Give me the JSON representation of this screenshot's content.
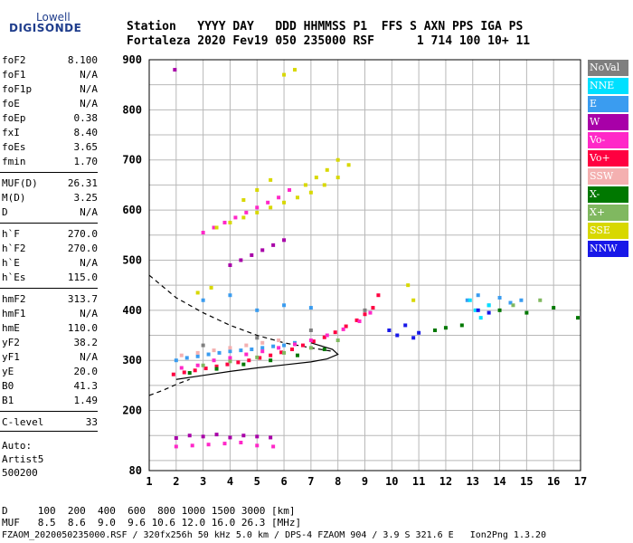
{
  "logo": {
    "line1": "Lowell",
    "line2": "DIGISONDE"
  },
  "header": {
    "line1": "Station   YYYY DAY   DDD HHMMSS P1  FFS S AXN PPS IGA PS",
    "line2": "Fortaleza 2020 Fev19 050 235000 RSF      1 714 100 10+ 11"
  },
  "params": [
    {
      "name": "foF2",
      "value": "8.100"
    },
    {
      "name": "foF1",
      "value": "N/A"
    },
    {
      "name": "foF1p",
      "value": "N/A"
    },
    {
      "name": "foE",
      "value": "N/A"
    },
    {
      "name": "foEp",
      "value": "0.38"
    },
    {
      "name": "fxI",
      "value": "8.40"
    },
    {
      "name": "foEs",
      "value": "3.65"
    },
    {
      "name": "fmin",
      "value": "1.70"
    },
    {
      "name": "MUF(D)",
      "value": "26.31"
    },
    {
      "name": "M(D)",
      "value": "3.25"
    },
    {
      "name": "D",
      "value": "N/A"
    },
    {
      "name": "h`F",
      "value": "270.0"
    },
    {
      "name": "h`F2",
      "value": "270.0"
    },
    {
      "name": "h`E",
      "value": "N/A"
    },
    {
      "name": "h`Es",
      "value": "115.0"
    },
    {
      "name": "hmF2",
      "value": "313.7"
    },
    {
      "name": "hmF1",
      "value": "N/A"
    },
    {
      "name": "hmE",
      "value": "110.0"
    },
    {
      "name": "yF2",
      "value": "38.2"
    },
    {
      "name": "yF1",
      "value": "N/A"
    },
    {
      "name": "yE",
      "value": "20.0"
    },
    {
      "name": "B0",
      "value": "41.3"
    },
    {
      "name": "B1",
      "value": "1.49"
    },
    {
      "name": "C-level",
      "value": "33"
    }
  ],
  "autoscale": {
    "line1": "Auto:",
    "line2": "Artist5",
    "line3": "500200"
  },
  "legend": [
    {
      "label": "NoVal",
      "color": "#7f7f7f"
    },
    {
      "label": "NNE",
      "color": "#00e0ff"
    },
    {
      "label": "E",
      "color": "#3a9cf0"
    },
    {
      "label": "W",
      "color": "#a800a8"
    },
    {
      "label": "Vo-",
      "color": "#ff28c8"
    },
    {
      "label": "Vo+",
      "color": "#ff0040"
    },
    {
      "label": "SSW",
      "color": "#f4b0b0"
    },
    {
      "label": "X-",
      "color": "#007800"
    },
    {
      "label": "X+",
      "color": "#80b860"
    },
    {
      "label": "SSE",
      "color": "#d8d800"
    },
    {
      "label": "NNW",
      "color": "#1818e8"
    }
  ],
  "footer": {
    "line1": "D     100  200  400  600  800 1000 1500 3000 [km]",
    "line2": "MUF   8.5  8.6  9.0  9.6 10.6 12.0 16.0 26.3 [MHz]",
    "line3": "FZAOM_2020050235000.RSF / 320fx256h 50 kHz 5.0 km / DPS-4 FZAOM 904 / 3.9 S 321.6 E   Ion2Png 1.3.20"
  },
  "chart_data": {
    "type": "scatter",
    "xlim": [
      1,
      17
    ],
    "ylim": [
      80,
      900
    ],
    "xticks": [
      "1",
      "2",
      "3",
      "4",
      "5",
      "6",
      "7",
      "8",
      "9",
      "10",
      "11",
      "12",
      "13",
      "14",
      "15",
      "16",
      "17"
    ],
    "yticks": [
      "80",
      "200",
      "300",
      "400",
      "500",
      "600",
      "700",
      "800",
      "900"
    ],
    "grid": true,
    "legend_position": "right",
    "series": [
      {
        "name": "E",
        "color": "#3a9cf0",
        "x": [
          2.0,
          2.4,
          2.8,
          3.2,
          3.6,
          4.0,
          4.4,
          4.8,
          5.2,
          5.6,
          6.0,
          6.4,
          3.0,
          4.0,
          5.0,
          6.0,
          7.0,
          12.8,
          13.2,
          13.6,
          14.0,
          14.4,
          14.8
        ],
        "y": [
          300,
          305,
          308,
          312,
          315,
          318,
          320,
          322,
          325,
          328,
          330,
          335,
          420,
          430,
          400,
          410,
          405,
          420,
          430,
          410,
          425,
          415,
          420
        ]
      },
      {
        "name": "Vo+",
        "color": "#ff0040",
        "x": [
          1.9,
          2.3,
          2.7,
          3.1,
          3.5,
          3.9,
          4.3,
          4.7,
          5.1,
          5.5,
          5.9,
          6.3,
          6.7,
          7.1,
          7.5,
          7.9,
          8.3,
          8.7,
          9.0,
          9.3,
          9.5
        ],
        "y": [
          272,
          276,
          280,
          284,
          288,
          292,
          296,
          300,
          305,
          310,
          316,
          322,
          330,
          338,
          346,
          356,
          368,
          380,
          392,
          405,
          430
        ]
      },
      {
        "name": "Vo-",
        "color": "#ff28c8",
        "x": [
          2.2,
          2.8,
          3.4,
          4.0,
          4.6,
          5.2,
          5.8,
          6.4,
          7.0,
          7.6,
          8.2,
          8.8,
          9.2,
          3.0,
          3.4,
          3.8,
          4.2,
          4.6,
          5.0,
          5.4,
          5.8,
          6.2,
          2.0,
          2.6,
          3.2,
          3.8,
          4.4,
          5.0,
          5.6
        ],
        "y": [
          285,
          290,
          300,
          305,
          312,
          318,
          325,
          332,
          340,
          350,
          362,
          378,
          395,
          555,
          565,
          575,
          585,
          595,
          605,
          615,
          625,
          640,
          128,
          130,
          132,
          134,
          136,
          130,
          128
        ]
      },
      {
        "name": "W",
        "color": "#a800a8",
        "x": [
          2.0,
          2.5,
          3.0,
          3.5,
          4.0,
          4.5,
          5.0,
          5.5,
          4.0,
          4.4,
          4.8,
          5.2,
          5.6,
          6.0,
          1.95
        ],
        "y": [
          145,
          150,
          148,
          152,
          146,
          150,
          148,
          146,
          490,
          500,
          510,
          520,
          530,
          540,
          880
        ]
      },
      {
        "name": "NNE",
        "color": "#00e0ff",
        "x": [
          12.9,
          13.1,
          13.3,
          13.6
        ],
        "y": [
          420,
          400,
          385,
          410
        ]
      },
      {
        "name": "NNW",
        "color": "#1818e8",
        "x": [
          9.9,
          10.2,
          10.5,
          10.8,
          11.0,
          13.2,
          13.6
        ],
        "y": [
          360,
          350,
          370,
          345,
          355,
          400,
          395
        ]
      },
      {
        "name": "X-",
        "color": "#007800",
        "x": [
          2.5,
          3.5,
          4.5,
          5.5,
          6.5,
          7.5,
          11.6,
          12.0,
          12.6,
          14.0,
          15.0,
          16.0,
          16.9
        ],
        "y": [
          275,
          283,
          292,
          300,
          310,
          322,
          360,
          365,
          370,
          400,
          395,
          405,
          385
        ]
      },
      {
        "name": "X+",
        "color": "#80b860",
        "x": [
          3.0,
          4.0,
          5.0,
          6.0,
          7.0,
          8.0,
          14.5,
          15.5
        ],
        "y": [
          290,
          298,
          306,
          315,
          325,
          340,
          410,
          420
        ]
      },
      {
        "name": "SSE",
        "color": "#d8d800",
        "x": [
          3.5,
          4.0,
          4.5,
          5.0,
          5.5,
          6.0,
          6.5,
          7.0,
          7.5,
          8.0,
          8.4,
          4.5,
          5.0,
          5.5,
          6.0,
          6.4,
          6.8,
          7.2,
          7.6,
          8.0,
          10.6,
          10.8,
          2.8,
          3.3
        ],
        "y": [
          565,
          575,
          585,
          595,
          605,
          615,
          625,
          635,
          650,
          665,
          690,
          620,
          640,
          660,
          870,
          880,
          650,
          665,
          680,
          700,
          450,
          420,
          435,
          445
        ]
      },
      {
        "name": "SSW",
        "color": "#f4b0b0",
        "x": [
          2.2,
          2.8,
          3.4,
          4.0,
          4.6,
          5.2,
          5.8
        ],
        "y": [
          310,
          315,
          320,
          325,
          330,
          335,
          340
        ]
      },
      {
        "name": "NoVal",
        "color": "#7f7f7f",
        "x": [
          3.0,
          5.0,
          7.0,
          9.0
        ],
        "y": [
          330,
          345,
          360,
          400
        ]
      }
    ],
    "profile_lines": [
      {
        "style": "dashed",
        "x": [
          1,
          2,
          3,
          4,
          5,
          6,
          7,
          7.8
        ],
        "y": [
          470,
          425,
          395,
          370,
          350,
          335,
          325,
          318
        ]
      },
      {
        "style": "solid",
        "x": [
          2,
          3,
          4,
          5,
          6,
          7,
          7.6,
          8.0,
          7.8,
          7.0
        ],
        "y": [
          262,
          270,
          278,
          285,
          291,
          297,
          303,
          312,
          322,
          335
        ]
      },
      {
        "style": "dashed",
        "x": [
          1,
          1.5,
          2,
          2.5
        ],
        "y": [
          230,
          240,
          252,
          262
        ]
      }
    ]
  }
}
